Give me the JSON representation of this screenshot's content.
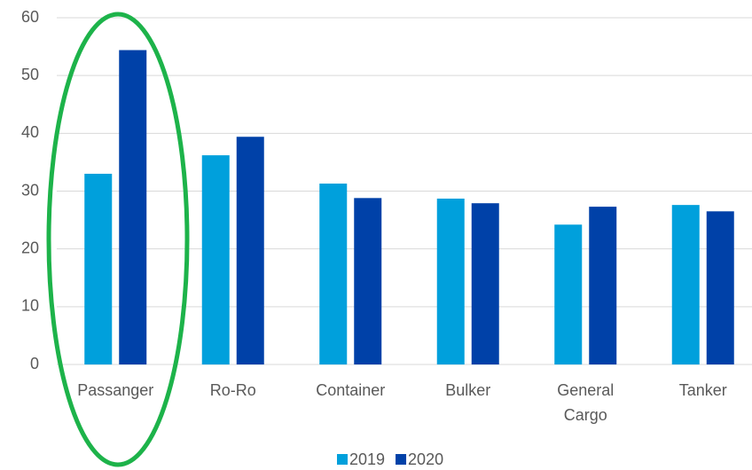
{
  "chart_data": {
    "type": "bar",
    "categories": [
      "Passanger",
      "Ro-Ro",
      "Container",
      "Bulker",
      "General Cargo",
      "Tanker"
    ],
    "series": [
      {
        "name": "2019",
        "color": "#00a0dc",
        "values": [
          33.0,
          36.2,
          31.3,
          28.7,
          24.2,
          27.6
        ]
      },
      {
        "name": "2020",
        "color": "#0041a8",
        "values": [
          54.4,
          39.4,
          28.8,
          27.9,
          27.3,
          26.5
        ]
      }
    ],
    "ylim": [
      0,
      60
    ],
    "yticks": [
      0,
      10,
      20,
      30,
      40,
      50,
      60
    ],
    "grid": true,
    "legend": "bottom"
  }
}
